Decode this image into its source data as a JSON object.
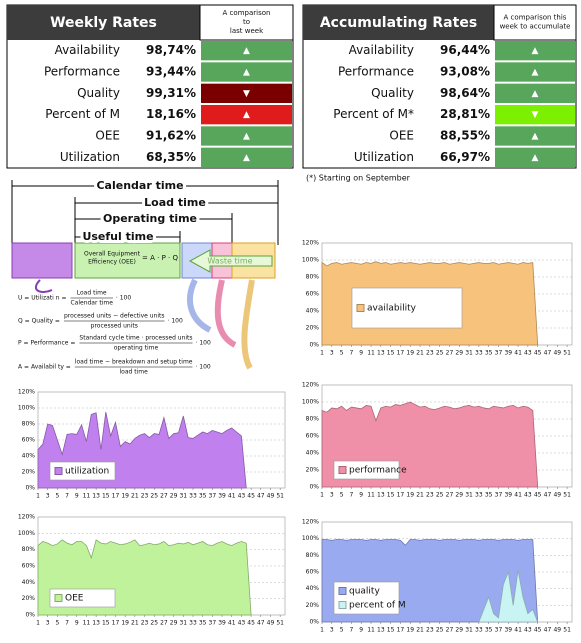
{
  "tables": [
    {
      "title": "Weekly Rates",
      "comparison": [
        "A comparison",
        "to",
        "last week"
      ],
      "rows": [
        {
          "label": "Availability",
          "value": "98,74%",
          "arrow": "▲",
          "color": "#58a55c"
        },
        {
          "label": "Performance",
          "value": "93,44%",
          "arrow": "▲",
          "color": "#58a55c"
        },
        {
          "label": "Quality",
          "value": "99,31%",
          "arrow": "▼",
          "color": "#7a0000"
        },
        {
          "label": "Percent of M",
          "value": "18,16%",
          "arrow": "▲",
          "color": "#e01b1b"
        },
        {
          "label": "OEE",
          "value": "91,62%",
          "arrow": "▲",
          "color": "#58a55c"
        },
        {
          "label": "Utilization",
          "value": "68,35%",
          "arrow": "▲",
          "color": "#58a55c"
        }
      ]
    },
    {
      "title": "Accumulating Rates",
      "comparison": [
        "A comparison this",
        "week to accumulate"
      ],
      "rows": [
        {
          "label": "Availability",
          "value": "96,44%",
          "arrow": "▲",
          "color": "#58a55c"
        },
        {
          "label": "Performance",
          "value": "93,08%",
          "arrow": "▲",
          "color": "#58a55c"
        },
        {
          "label": "Quality",
          "value": "98,64%",
          "arrow": "▲",
          "color": "#58a55c"
        },
        {
          "label": "Percent of  M*",
          "value": "28,81%",
          "arrow": "▼",
          "color": "#7cf000"
        },
        {
          "label": "OEE",
          "value": "88,55%",
          "arrow": "▲",
          "color": "#58a55c"
        },
        {
          "label": "Utilization",
          "value": "66,97%",
          "arrow": "▲",
          "color": "#58a55c"
        }
      ]
    }
  ],
  "footnote": "(*) Starting on September",
  "diagram": {
    "calendar": "Calendar time",
    "load": "Load time",
    "operating": "Operating time",
    "useful": "Useful time",
    "oee": [
      "Overall Equipment",
      "Efficiency (OEE)"
    ],
    "oee_formula": "= A · P · Q",
    "waste": "Waste time",
    "formulas": [
      {
        "lhs": "U = Utilizati n =",
        "num": "Load  time",
        "den": "Calendar time",
        "factor": "· 100"
      },
      {
        "lhs": "Q = Quality =",
        "num": "processed units − defective units",
        "den": "processed units",
        "factor": "· 100"
      },
      {
        "lhs": "P = Performance =",
        "num": "Standard cycle time · processed units",
        "den": "operating time",
        "factor": "· 100"
      },
      {
        "lhs": "A = Availabil ty =",
        "num": "load time − breakdown and setup time",
        "den": "load time",
        "factor": "· 100"
      }
    ]
  },
  "chart_data": [
    {
      "type": "area",
      "legend": "center left",
      "xlim": [
        1,
        52
      ],
      "ylim": [
        0,
        120
      ],
      "xticks": [
        1,
        3,
        5,
        7,
        9,
        11,
        13,
        15,
        17,
        19,
        21,
        23,
        25,
        27,
        29,
        31,
        33,
        35,
        37,
        39,
        41,
        43,
        45,
        47,
        49,
        51
      ],
      "yticks": [
        {
          "value": 0,
          "label": "0%"
        },
        {
          "value": 20,
          "label": "20%"
        },
        {
          "value": 40,
          "label": "40%"
        },
        {
          "value": 60,
          "label": "60%"
        },
        {
          "value": 80,
          "label": "80%"
        },
        {
          "value": 100,
          "label": "100%"
        },
        {
          "value": 120,
          "label": "120%"
        }
      ],
      "x": [
        1,
        2,
        3,
        4,
        5,
        6,
        7,
        8,
        9,
        10,
        11,
        12,
        13,
        14,
        15,
        16,
        17,
        18,
        19,
        20,
        21,
        22,
        23,
        24,
        25,
        26,
        27,
        28,
        29,
        30,
        31,
        32,
        33,
        34,
        35,
        36,
        37,
        38,
        39,
        40,
        41,
        42,
        43,
        44,
        45
      ],
      "series": [
        {
          "name": "availability",
          "color": "#f7c27c",
          "values": [
            97,
            93,
            96,
            97,
            95,
            96,
            97,
            96,
            95,
            97,
            96,
            98,
            96,
            97,
            95,
            96,
            97,
            96,
            97,
            96,
            95,
            96,
            97,
            96,
            96,
            97,
            95,
            96,
            97,
            96,
            95,
            96,
            97,
            96,
            96,
            97,
            95,
            96,
            97,
            96,
            95,
            97,
            96,
            97,
            0
          ]
        }
      ]
    },
    {
      "type": "area",
      "legend": "lower left",
      "xlim": [
        1,
        52
      ],
      "ylim": [
        0,
        120
      ],
      "xticks": [
        1,
        3,
        5,
        7,
        9,
        11,
        13,
        15,
        17,
        19,
        21,
        23,
        25,
        27,
        29,
        31,
        33,
        35,
        37,
        39,
        41,
        43,
        45,
        47,
        49,
        51
      ],
      "yticks": [
        {
          "value": 0,
          "label": "0%"
        },
        {
          "value": 20,
          "label": "20%"
        },
        {
          "value": 40,
          "label": "40%"
        },
        {
          "value": 60,
          "label": "60%"
        },
        {
          "value": 80,
          "label": "80%"
        },
        {
          "value": 100,
          "label": "100%"
        },
        {
          "value": 120,
          "label": "120%"
        }
      ],
      "x": [
        1,
        2,
        3,
        4,
        5,
        6,
        7,
        8,
        9,
        10,
        11,
        12,
        13,
        14,
        15,
        16,
        17,
        18,
        19,
        20,
        21,
        22,
        23,
        24,
        25,
        26,
        27,
        28,
        29,
        30,
        31,
        32,
        33,
        34,
        35,
        36,
        37,
        38,
        39,
        40,
        41,
        42,
        43,
        44,
        45
      ],
      "series": [
        {
          "name": "performance",
          "color": "#f090a8",
          "values": [
            90,
            88,
            93,
            92,
            95,
            90,
            94,
            93,
            92,
            96,
            95,
            78,
            93,
            95,
            94,
            97,
            96,
            98,
            100,
            97,
            94,
            95,
            92,
            91,
            93,
            95,
            94,
            92,
            93,
            95,
            96,
            94,
            95,
            93,
            92,
            95,
            94,
            93,
            95,
            96,
            93,
            95,
            94,
            90,
            0
          ]
        }
      ]
    },
    {
      "type": "area",
      "legend": "lower left",
      "xlim": [
        1,
        52
      ],
      "ylim": [
        0,
        120
      ],
      "xticks": [
        1,
        3,
        5,
        7,
        9,
        11,
        13,
        15,
        17,
        19,
        21,
        23,
        25,
        27,
        29,
        31,
        33,
        35,
        37,
        39,
        41,
        43,
        45,
        47,
        49,
        51
      ],
      "yticks": [
        {
          "value": 0,
          "label": "0%"
        },
        {
          "value": 20,
          "label": "20%"
        },
        {
          "value": 40,
          "label": "40%"
        },
        {
          "value": 60,
          "label": "60%"
        },
        {
          "value": 80,
          "label": "80%"
        },
        {
          "value": 100,
          "label": "100%"
        },
        {
          "value": 120,
          "label": "120%"
        }
      ],
      "x": [
        1,
        2,
        3,
        4,
        5,
        6,
        7,
        8,
        9,
        10,
        11,
        12,
        13,
        14,
        15,
        16,
        17,
        18,
        19,
        20,
        21,
        22,
        23,
        24,
        25,
        26,
        27,
        28,
        29,
        30,
        31,
        32,
        33,
        34,
        35,
        36,
        37,
        38,
        39,
        40,
        41,
        42,
        43,
        44
      ],
      "series": [
        {
          "name": "utilization",
          "color": "#c080ee",
          "values": [
            48,
            55,
            80,
            78,
            60,
            42,
            67,
            68,
            67,
            79,
            58,
            92,
            94,
            48,
            95,
            65,
            82,
            52,
            58,
            55,
            62,
            66,
            68,
            63,
            68,
            67,
            88,
            62,
            68,
            69,
            90,
            63,
            62,
            66,
            70,
            68,
            72,
            70,
            68,
            72,
            75,
            70,
            65,
            0
          ]
        }
      ]
    },
    {
      "type": "area",
      "legend": "lower left",
      "xlim": [
        1,
        52
      ],
      "ylim": [
        0,
        120
      ],
      "xticks": [
        1,
        3,
        5,
        7,
        9,
        11,
        13,
        15,
        17,
        19,
        21,
        23,
        25,
        27,
        29,
        31,
        33,
        35,
        37,
        39,
        41,
        43,
        45,
        47,
        49,
        51
      ],
      "yticks": [
        {
          "value": 0,
          "label": "0%"
        },
        {
          "value": 20,
          "label": "20%"
        },
        {
          "value": 40,
          "label": "40%"
        },
        {
          "value": 60,
          "label": "60%"
        },
        {
          "value": 80,
          "label": "80%"
        },
        {
          "value": 100,
          "label": "100%"
        },
        {
          "value": 120,
          "label": "120%"
        }
      ],
      "x": [
        1,
        2,
        3,
        4,
        5,
        6,
        7,
        8,
        9,
        10,
        11,
        12,
        13,
        14,
        15,
        16,
        17,
        18,
        19,
        20,
        21,
        22,
        23,
        24,
        25,
        26,
        27,
        28,
        29,
        30,
        31,
        32,
        33,
        34,
        35,
        36,
        37,
        38,
        39,
        40,
        41,
        42,
        43,
        44,
        45
      ],
      "series": [
        {
          "name": "OEE",
          "color": "#bff29a",
          "values": [
            85,
            90,
            88,
            85,
            87,
            92,
            88,
            86,
            90,
            90,
            85,
            70,
            92,
            88,
            87,
            90,
            88,
            86,
            87,
            89,
            92,
            85,
            86,
            88,
            86,
            87,
            90,
            85,
            86,
            88,
            87,
            89,
            86,
            88,
            90,
            86,
            85,
            88,
            90,
            87,
            85,
            88,
            90,
            88,
            0
          ]
        }
      ]
    },
    {
      "type": "area",
      "legend": "lower left",
      "xlim": [
        1,
        52
      ],
      "ylim": [
        0,
        120
      ],
      "xticks": [
        1,
        3,
        5,
        7,
        9,
        11,
        13,
        15,
        17,
        19,
        21,
        23,
        25,
        27,
        29,
        31,
        33,
        35,
        37,
        39,
        41,
        43,
        45,
        47,
        49,
        51
      ],
      "yticks": [
        {
          "value": 0,
          "label": "0%"
        },
        {
          "value": 20,
          "label": "20%"
        },
        {
          "value": 40,
          "label": "40%"
        },
        {
          "value": 60,
          "label": "60%"
        },
        {
          "value": 80,
          "label": "80%"
        },
        {
          "value": 100,
          "label": "100%"
        },
        {
          "value": 120,
          "label": "120%"
        }
      ],
      "x": [
        1,
        2,
        3,
        4,
        5,
        6,
        7,
        8,
        9,
        10,
        11,
        12,
        13,
        14,
        15,
        16,
        17,
        18,
        19,
        20,
        21,
        22,
        23,
        24,
        25,
        26,
        27,
        28,
        29,
        30,
        31,
        32,
        33,
        34,
        35,
        36,
        37,
        38,
        39,
        40,
        41,
        42,
        43,
        44,
        45
      ],
      "series": [
        {
          "name": "quality",
          "color": "#9aaaf0",
          "values": [
            99,
            99,
            98,
            99,
            99,
            98,
            99,
            99,
            99,
            98,
            99,
            99,
            98,
            99,
            99,
            99,
            98,
            92,
            99,
            99,
            98,
            99,
            99,
            99,
            98,
            99,
            99,
            99,
            98,
            99,
            99,
            99,
            98,
            99,
            99,
            99,
            98,
            99,
            99,
            99,
            98,
            99,
            99,
            99,
            0
          ]
        },
        {
          "name": "percent of M",
          "color": "#c8f4f4",
          "values": [
            null,
            null,
            null,
            null,
            null,
            null,
            null,
            null,
            null,
            null,
            null,
            null,
            null,
            null,
            null,
            null,
            null,
            null,
            null,
            null,
            null,
            null,
            null,
            null,
            null,
            null,
            null,
            null,
            null,
            null,
            null,
            null,
            0,
            15,
            30,
            10,
            5,
            45,
            60,
            20,
            62,
            30,
            10,
            15,
            0
          ]
        }
      ]
    }
  ]
}
